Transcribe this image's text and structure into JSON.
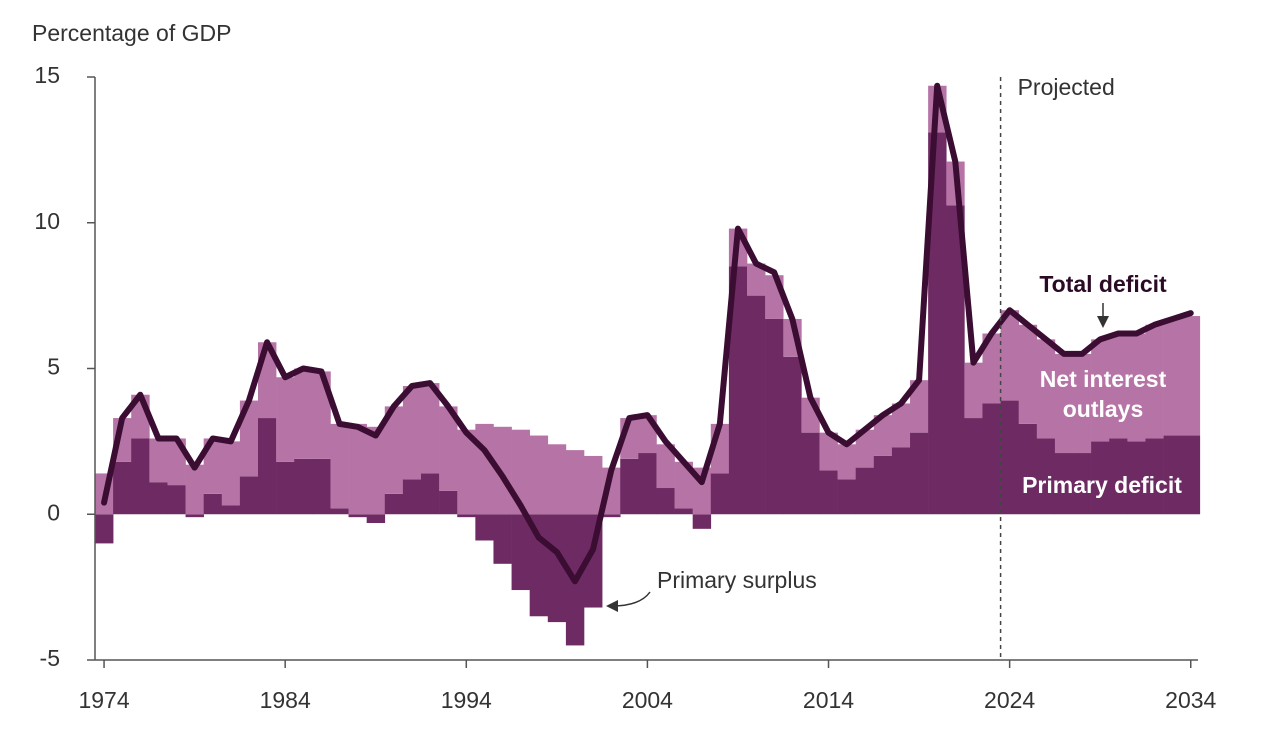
{
  "chart_data": {
    "type": "stacked-bar-line",
    "y_label": "Percentage of GDP",
    "x": [
      1974,
      1975,
      1976,
      1977,
      1978,
      1979,
      1980,
      1981,
      1982,
      1983,
      1984,
      1985,
      1986,
      1987,
      1988,
      1989,
      1990,
      1991,
      1992,
      1993,
      1994,
      1995,
      1996,
      1997,
      1998,
      1999,
      2000,
      2001,
      2002,
      2003,
      2004,
      2005,
      2006,
      2007,
      2008,
      2009,
      2010,
      2011,
      2012,
      2013,
      2014,
      2015,
      2016,
      2017,
      2018,
      2019,
      2020,
      2021,
      2022,
      2023,
      2024,
      2025,
      2026,
      2027,
      2028,
      2029,
      2030,
      2031,
      2032,
      2033,
      2034
    ],
    "series": [
      {
        "name": "Primary deficit",
        "color": "#6e2a63",
        "kind": "bar",
        "values": [
          -1.0,
          1.8,
          2.6,
          1.1,
          1.0,
          -0.1,
          0.7,
          0.3,
          1.3,
          3.3,
          1.8,
          1.9,
          1.9,
          0.2,
          -0.1,
          -0.3,
          0.7,
          1.2,
          1.4,
          0.8,
          -0.1,
          -0.9,
          -1.7,
          -2.6,
          -3.5,
          -3.7,
          -4.5,
          -3.2,
          -0.1,
          1.9,
          2.1,
          0.9,
          0.2,
          -0.5,
          1.4,
          8.5,
          7.5,
          6.7,
          5.4,
          2.8,
          1.5,
          1.2,
          1.6,
          2.0,
          2.3,
          2.8,
          13.1,
          10.6,
          3.3,
          3.8,
          3.9,
          3.1,
          2.6,
          2.1,
          2.1,
          2.5,
          2.6,
          2.5,
          2.6,
          2.7,
          2.7
        ]
      },
      {
        "name": "Net interest outlays",
        "color": "#b674a6",
        "kind": "bar",
        "values": [
          1.4,
          1.5,
          1.5,
          1.5,
          1.6,
          1.7,
          1.9,
          2.2,
          2.6,
          2.6,
          2.9,
          3.1,
          3.0,
          2.9,
          3.1,
          3.0,
          3.0,
          3.2,
          3.1,
          2.9,
          2.9,
          3.1,
          3.0,
          2.9,
          2.7,
          2.4,
          2.2,
          2.0,
          1.6,
          1.4,
          1.3,
          1.5,
          1.6,
          1.6,
          1.7,
          1.3,
          1.1,
          1.5,
          1.3,
          1.2,
          1.3,
          1.2,
          1.3,
          1.4,
          1.5,
          1.8,
          1.6,
          1.5,
          1.9,
          2.4,
          3.1,
          3.4,
          3.4,
          3.4,
          3.4,
          3.5,
          3.6,
          3.7,
          3.9,
          4.0,
          4.1
        ]
      },
      {
        "name": "Total deficit",
        "color": "#3b0d33",
        "kind": "line",
        "values": [
          0.4,
          3.3,
          4.1,
          2.6,
          2.6,
          1.6,
          2.6,
          2.5,
          3.9,
          5.9,
          4.7,
          5.0,
          4.9,
          3.1,
          3.0,
          2.7,
          3.7,
          4.4,
          4.5,
          3.7,
          2.8,
          2.2,
          1.3,
          0.3,
          -0.8,
          -1.3,
          -2.3,
          -1.2,
          1.5,
          3.3,
          3.4,
          2.5,
          1.8,
          1.1,
          3.1,
          9.8,
          8.6,
          8.3,
          6.7,
          4.0,
          2.8,
          2.4,
          2.9,
          3.4,
          3.8,
          4.6,
          14.7,
          12.1,
          5.2,
          6.2,
          7.0,
          6.5,
          6.0,
          5.5,
          5.5,
          6.0,
          6.2,
          6.2,
          6.5,
          6.7,
          6.9
        ]
      }
    ],
    "xlim": [
      1973.5,
      2034.4
    ],
    "xticks": [
      1974,
      1984,
      1994,
      2004,
      2014,
      2024,
      2034
    ],
    "ylim": [
      -5,
      15
    ],
    "yticks": [
      -5,
      0,
      5,
      10,
      15
    ],
    "annotations": [
      {
        "text": "Projected",
        "x": 2023.5
      },
      {
        "text": "Primary surplus"
      }
    ]
  }
}
